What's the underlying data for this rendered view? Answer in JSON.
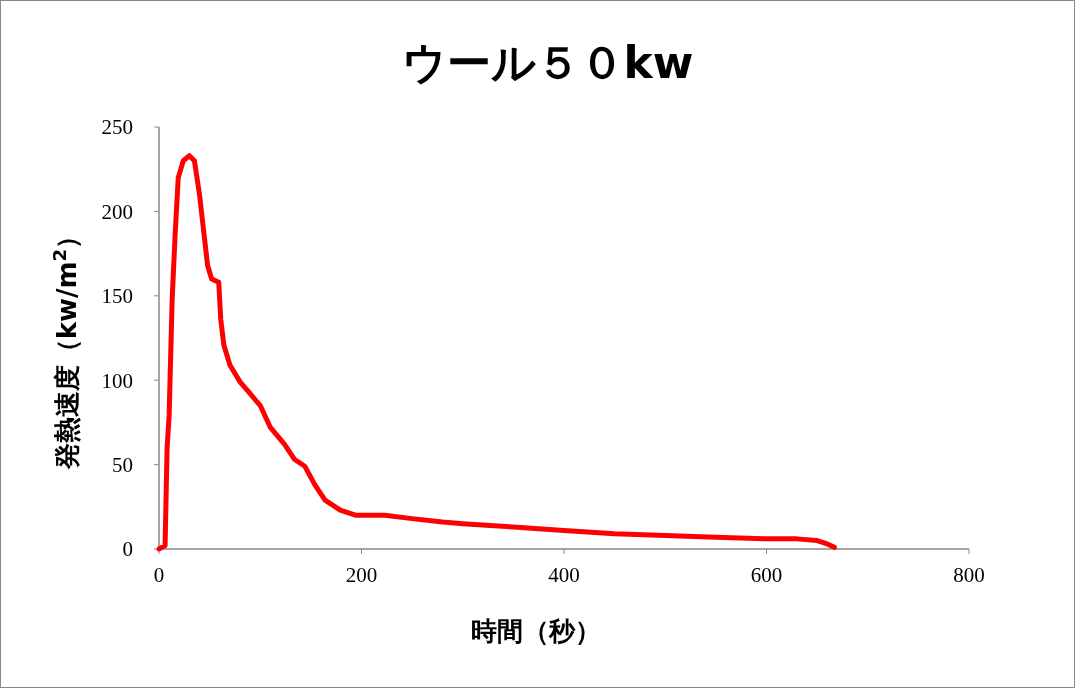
{
  "chart_data": {
    "type": "line",
    "title": "ウール５０kw",
    "xlabel": "時間（秒）",
    "ylabel": "発熱速度（kw/m$^{2}$）",
    "xlim": [
      0,
      800
    ],
    "xticks": [
      0,
      200,
      400,
      600,
      800
    ],
    "ylim": [
      0,
      250
    ],
    "yticks": [
      0,
      50,
      100,
      150,
      200,
      250
    ],
    "grid": false,
    "marker": "none",
    "line_style": "solid",
    "series": [
      {
        "color": "#ff0000",
        "x": [
          0,
          6,
          8,
          10,
          13,
          16,
          19,
          24,
          30,
          35,
          40,
          44,
          48,
          52,
          59,
          61,
          64,
          70,
          80,
          90,
          100,
          110,
          124,
          134,
          144,
          154,
          164,
          179,
          194,
          223,
          250,
          280,
          300,
          350,
          400,
          450,
          500,
          550,
          600,
          630,
          650,
          660,
          667
        ],
        "values": [
          0,
          2,
          60,
          79,
          148,
          187,
          220,
          230,
          233,
          230,
          210,
          189,
          168,
          160,
          158,
          136,
          121,
          109,
          99,
          92,
          85,
          72,
          62,
          53,
          49,
          38,
          29,
          23,
          20,
          20,
          18,
          16,
          15,
          13,
          11,
          9,
          8,
          7,
          6,
          6,
          5,
          3,
          1
        ]
      }
    ]
  }
}
